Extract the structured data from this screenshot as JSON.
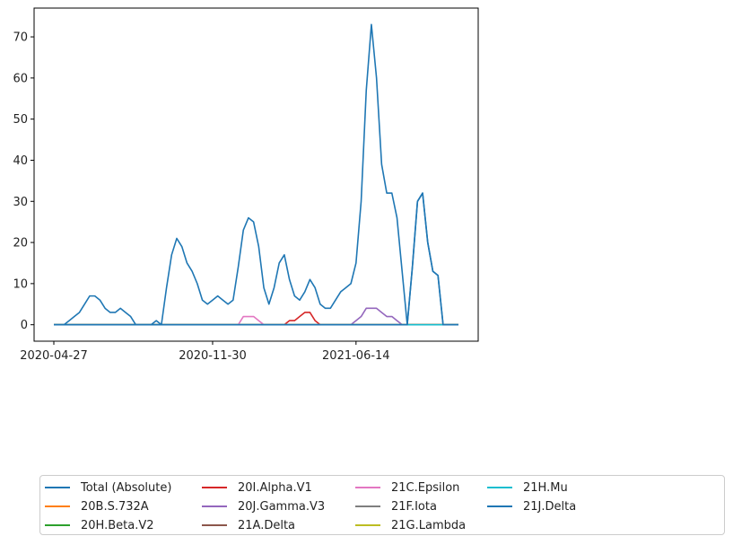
{
  "chart_data": {
    "type": "line",
    "title": "",
    "xlabel": "",
    "ylabel": "",
    "x_tick_labels": [
      {
        "label": "2020-04-27",
        "index": 0
      },
      {
        "label": "2020-11-30",
        "index": 31
      },
      {
        "label": "2021-06-14",
        "index": 59
      }
    ],
    "y_ticks": [
      0,
      10,
      20,
      30,
      40,
      50,
      60,
      70
    ],
    "ylim": [
      -4,
      77
    ],
    "n_points": 80,
    "grid": false,
    "legend_placement": "bottom, below plot, 5 columns",
    "series": [
      {
        "name": "Total (Absolute)",
        "color": "#1f77b4",
        "values": [
          0,
          0,
          0,
          1,
          2,
          3,
          5,
          7,
          7,
          6,
          4,
          3,
          3,
          4,
          3,
          2,
          0,
          0,
          0,
          0,
          1,
          0,
          9,
          17,
          21,
          19,
          15,
          13,
          10,
          6,
          5,
          6,
          7,
          6,
          5,
          6,
          14,
          23,
          26,
          25,
          19,
          9,
          5,
          9,
          15,
          17,
          11,
          7,
          6,
          8,
          11,
          9,
          5,
          4,
          4,
          6,
          8,
          9,
          10,
          15,
          30,
          57,
          73,
          60,
          39,
          32,
          32,
          26,
          13,
          0,
          14,
          30,
          32,
          20,
          13,
          12,
          0,
          0,
          0,
          0
        ]
      },
      {
        "name": "20B.S.732A",
        "color": "#ff7f0e",
        "values": []
      },
      {
        "name": "20H.Beta.V2",
        "color": "#2ca02c",
        "values": []
      },
      {
        "name": "20I.Alpha.V1",
        "color": "#d62728",
        "values": [
          0,
          0,
          0,
          0,
          0,
          0,
          0,
          0,
          0,
          0,
          0,
          0,
          0,
          0,
          0,
          0,
          0,
          0,
          0,
          0,
          0,
          0,
          0,
          0,
          0,
          0,
          0,
          0,
          0,
          0,
          0,
          0,
          0,
          0,
          0,
          0,
          0,
          0,
          0,
          0,
          0,
          0,
          0,
          0,
          0,
          0,
          1,
          1,
          2,
          3,
          3,
          1,
          0,
          0,
          0,
          0,
          0,
          0,
          0,
          0,
          0,
          0,
          0,
          0,
          0,
          0,
          0,
          0,
          0,
          0,
          0,
          0,
          0,
          0,
          0,
          0,
          0,
          0,
          0,
          0
        ]
      },
      {
        "name": "20J.Gamma.V3",
        "color": "#9467bd",
        "values": [
          0,
          0,
          0,
          0,
          0,
          0,
          0,
          0,
          0,
          0,
          0,
          0,
          0,
          0,
          0,
          0,
          0,
          0,
          0,
          0,
          0,
          0,
          0,
          0,
          0,
          0,
          0,
          0,
          0,
          0,
          0,
          0,
          0,
          0,
          0,
          0,
          0,
          0,
          0,
          0,
          0,
          0,
          0,
          0,
          0,
          0,
          0,
          0,
          0,
          0,
          0,
          0,
          0,
          0,
          0,
          0,
          0,
          0,
          0,
          1,
          2,
          4,
          4,
          4,
          3,
          2,
          2,
          1,
          0,
          0,
          0,
          0,
          0,
          0,
          0,
          0,
          0,
          0,
          0,
          0
        ]
      },
      {
        "name": "21A.Delta",
        "color": "#8c564b",
        "values": []
      },
      {
        "name": "21C.Epsilon",
        "color": "#e377c2",
        "values": [
          0,
          0,
          0,
          0,
          0,
          0,
          0,
          0,
          0,
          0,
          0,
          0,
          0,
          0,
          0,
          0,
          0,
          0,
          0,
          0,
          0,
          0,
          0,
          0,
          0,
          0,
          0,
          0,
          0,
          0,
          0,
          0,
          0,
          0,
          0,
          0,
          0,
          2,
          2,
          2,
          1,
          0,
          0,
          0,
          0,
          0,
          0,
          0,
          0,
          0,
          0,
          0,
          0,
          0,
          0,
          0,
          0,
          0,
          0,
          0,
          0,
          0,
          0,
          0,
          0,
          0,
          0,
          0,
          0,
          0,
          0,
          0,
          0,
          0,
          0,
          0,
          0,
          0,
          0,
          0
        ]
      },
      {
        "name": "21F.Iota",
        "color": "#7f7f7f",
        "values": []
      },
      {
        "name": "21G.Lambda",
        "color": "#bcbd22",
        "values": []
      },
      {
        "name": "21H.Mu",
        "color": "#17becf",
        "values": []
      },
      {
        "name": "21J.Delta",
        "color": "#1f77b4",
        "values": [
          0,
          0,
          0,
          0,
          0,
          0,
          0,
          0,
          0,
          0,
          0,
          0,
          0,
          0,
          0,
          0,
          0,
          0,
          0,
          0,
          0,
          0,
          0,
          0,
          0,
          0,
          0,
          0,
          0,
          0,
          0,
          0,
          0,
          0,
          0,
          0,
          0,
          0,
          0,
          0,
          0,
          0,
          0,
          0,
          0,
          0,
          0,
          0,
          0,
          0,
          0,
          0,
          0,
          0,
          0,
          0,
          0,
          0,
          0,
          0,
          0,
          0,
          0,
          0,
          0,
          0,
          0,
          0,
          0,
          0,
          14,
          30,
          32,
          20,
          13,
          12,
          0,
          0,
          0,
          0
        ]
      }
    ]
  }
}
